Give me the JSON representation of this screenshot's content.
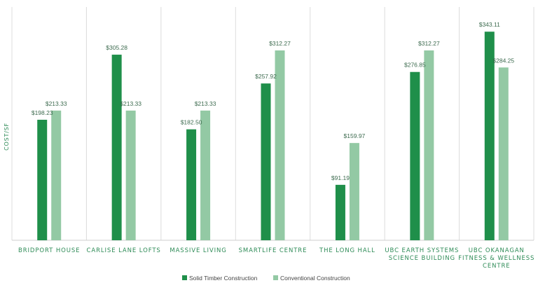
{
  "chart_data": {
    "type": "bar",
    "title": "",
    "xlabel": "",
    "ylabel": "COST/SF",
    "categories": [
      "BRIDPORT HOUSE",
      "CARLISE LANE LOFTS",
      "MASSIVE LIVING",
      "SMARTLIFE CENTRE",
      "THE LONG HALL",
      "UBC EARTH SYSTEMS SCIENCE BUILDING",
      "UBC OKANAGAN FITNESS & WELLNESS CENTRE"
    ],
    "category_lines": [
      [
        "BRIDPORT HOUSE"
      ],
      [
        "CARLISE LANE LOFTS"
      ],
      [
        "MASSIVE LIVING"
      ],
      [
        "SMARTLIFE CENTRE"
      ],
      [
        "THE LONG HALL"
      ],
      [
        "UBC EARTH SYSTEMS",
        "SCIENCE BUILDING"
      ],
      [
        "UBC OKANAGAN",
        "FITNESS & WELLNESS",
        "CENTRE"
      ]
    ],
    "series": [
      {
        "name": "Solid Timber Construction",
        "color": "#1f8f4a",
        "values": [
          198.23,
          305.28,
          182.5,
          257.92,
          91.19,
          276.85,
          343.11
        ],
        "labels": [
          "$198.23",
          "$305.28",
          "$182.50",
          "$257.92",
          "$91.19",
          "$276.85",
          "$343.11"
        ]
      },
      {
        "name": "Conventional Construction",
        "color": "#93c9a4",
        "values": [
          213.33,
          213.33,
          213.33,
          312.27,
          159.97,
          312.27,
          284.25
        ],
        "labels": [
          "$213.33",
          "$213.33",
          "$213.33",
          "$312.27",
          "$159.97",
          "$312.27",
          "$284.25"
        ]
      }
    ],
    "ylim": [
      0,
      386
    ],
    "grid": false,
    "legend_position": "bottom-center"
  }
}
